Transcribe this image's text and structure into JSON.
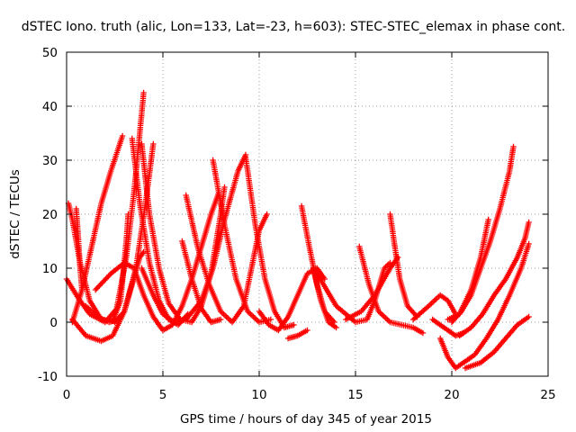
{
  "chart_data": {
    "type": "scatter",
    "title": "dSTEC Iono. truth (alic, Lon=133, Lat=-23, h=603): STEC-STEC_elemax in phase cont.",
    "xlabel": "GPS time / hours of day 345 of year 2015",
    "ylabel": "dSTEC  / TECUs",
    "xlim": [
      0,
      25
    ],
    "ylim": [
      -10,
      50
    ],
    "xticks": [
      0,
      5,
      10,
      15,
      20,
      25
    ],
    "yticks": [
      -10,
      0,
      10,
      20,
      30,
      40,
      50
    ],
    "grid": true,
    "marker": "plus",
    "color": "#ff0000",
    "arcs": [
      [
        [
          0.0,
          8.0
        ],
        [
          0.6,
          4.5
        ],
        [
          1.2,
          1.5
        ],
        [
          2.0,
          0.0
        ],
        [
          2.6,
          2.5
        ],
        [
          3.1,
          12.0
        ],
        [
          3.5,
          24.0
        ],
        [
          3.8,
          35.0
        ],
        [
          4.0,
          42.5
        ]
      ],
      [
        [
          0.1,
          22.0
        ],
        [
          0.3,
          19.0
        ],
        [
          0.7,
          11.0
        ],
        [
          1.2,
          4.0
        ],
        [
          1.8,
          0.5
        ],
        [
          2.4,
          0.2
        ],
        [
          2.8,
          4.0
        ],
        [
          3.1,
          15.0
        ],
        [
          3.2,
          20.0
        ]
      ],
      [
        [
          0.3,
          0.0
        ],
        [
          0.8,
          6.0
        ],
        [
          1.3,
          14.0
        ],
        [
          1.8,
          22.0
        ],
        [
          2.3,
          28.0
        ],
        [
          2.9,
          34.5
        ]
      ],
      [
        [
          0.3,
          0.5
        ],
        [
          1.0,
          -2.5
        ],
        [
          1.8,
          -3.5
        ],
        [
          2.4,
          -2.5
        ],
        [
          3.0,
          2.0
        ],
        [
          3.6,
          10.0
        ],
        [
          4.1,
          22.0
        ],
        [
          4.5,
          33.0
        ]
      ],
      [
        [
          0.5,
          21.0
        ],
        [
          0.6,
          16.0
        ],
        [
          0.7,
          10.0
        ],
        [
          0.8,
          6.0
        ]
      ],
      [
        [
          1.5,
          6.0
        ],
        [
          2.3,
          9.0
        ],
        [
          3.0,
          11.0
        ],
        [
          3.5,
          10.0
        ],
        [
          4.0,
          5.0
        ],
        [
          4.5,
          1.0
        ],
        [
          5.0,
          -1.5
        ],
        [
          5.5,
          -0.5
        ],
        [
          6.0,
          3.0
        ],
        [
          6.5,
          8.0
        ],
        [
          7.0,
          14.0
        ],
        [
          7.5,
          20.0
        ],
        [
          7.9,
          24.0
        ]
      ],
      [
        [
          2.5,
          0.0
        ],
        [
          3.0,
          2.0
        ],
        [
          3.4,
          7.0
        ],
        [
          3.8,
          12.0
        ],
        [
          4.0,
          13.0
        ]
      ],
      [
        [
          3.4,
          34.0
        ],
        [
          3.8,
          22.0
        ],
        [
          4.3,
          11.0
        ],
        [
          4.8,
          4.0
        ],
        [
          5.3,
          0.5
        ],
        [
          5.8,
          -0.5
        ],
        [
          6.3,
          1.5
        ]
      ],
      [
        [
          3.9,
          33.0
        ],
        [
          4.3,
          20.0
        ],
        [
          4.8,
          10.0
        ],
        [
          5.3,
          3.5
        ],
        [
          5.9,
          0.5
        ],
        [
          6.5,
          0.0
        ],
        [
          7.0,
          3.0
        ],
        [
          7.5,
          9.0
        ],
        [
          8.0,
          20.0
        ],
        [
          8.2,
          25.0
        ]
      ],
      [
        [
          3.9,
          10.0
        ],
        [
          4.5,
          5.0
        ],
        [
          5.0,
          1.5
        ],
        [
          5.6,
          0.0
        ],
        [
          6.2,
          0.5
        ],
        [
          7.0,
          4.0
        ],
        [
          7.6,
          10.0
        ],
        [
          8.2,
          19.0
        ],
        [
          8.9,
          28.0
        ],
        [
          9.3,
          31.0
        ]
      ],
      [
        [
          6.0,
          15.0
        ],
        [
          6.5,
          8.0
        ],
        [
          7.0,
          2.5
        ],
        [
          7.5,
          0.0
        ],
        [
          8.0,
          0.5
        ]
      ],
      [
        [
          6.2,
          23.5
        ],
        [
          6.8,
          14.0
        ],
        [
          7.4,
          7.0
        ],
        [
          8.0,
          2.0
        ],
        [
          8.6,
          0.0
        ],
        [
          9.2,
          3.0
        ],
        [
          9.6,
          10.0
        ],
        [
          10.0,
          17.0
        ],
        [
          10.4,
          20.0
        ]
      ],
      [
        [
          7.6,
          30.0
        ],
        [
          8.2,
          18.0
        ],
        [
          8.8,
          8.0
        ],
        [
          9.4,
          2.0
        ],
        [
          10.0,
          0.0
        ],
        [
          10.6,
          0.5
        ]
      ],
      [
        [
          9.3,
          30.5
        ],
        [
          9.8,
          18.0
        ],
        [
          10.3,
          8.0
        ],
        [
          10.8,
          2.0
        ],
        [
          11.3,
          -1.0
        ],
        [
          11.8,
          -0.5
        ]
      ],
      [
        [
          10.0,
          2.0
        ],
        [
          10.5,
          -0.5
        ],
        [
          11.0,
          -1.5
        ],
        [
          11.5,
          1.0
        ],
        [
          12.0,
          5.0
        ],
        [
          12.5,
          9.0
        ],
        [
          13.0,
          10.0
        ],
        [
          13.4,
          8.0
        ]
      ],
      [
        [
          12.2,
          21.5
        ],
        [
          12.6,
          14.0
        ],
        [
          13.0,
          7.0
        ],
        [
          13.4,
          2.0
        ],
        [
          13.9,
          0.0
        ]
      ],
      [
        [
          12.8,
          10.0
        ],
        [
          13.2,
          4.0
        ],
        [
          13.6,
          0.0
        ],
        [
          14.0,
          -1.0
        ]
      ],
      [
        [
          11.5,
          -3.0
        ],
        [
          12.0,
          -2.5
        ],
        [
          12.5,
          -1.5
        ]
      ],
      [
        [
          13.0,
          9.0
        ],
        [
          14.0,
          3.0
        ],
        [
          15.0,
          0.0
        ],
        [
          15.6,
          0.5
        ],
        [
          16.0,
          4.0
        ],
        [
          16.5,
          10.0
        ],
        [
          16.8,
          11.0
        ]
      ],
      [
        [
          15.2,
          14.0
        ],
        [
          15.7,
          7.0
        ],
        [
          16.2,
          2.0
        ],
        [
          16.8,
          0.0
        ],
        [
          17.4,
          -0.5
        ],
        [
          18.0,
          -1.0
        ],
        [
          18.5,
          -2.0
        ]
      ],
      [
        [
          16.8,
          20.0
        ],
        [
          17.0,
          15.0
        ],
        [
          17.3,
          8.0
        ],
        [
          17.7,
          3.0
        ],
        [
          18.2,
          1.0
        ]
      ],
      [
        [
          14.5,
          0.5
        ],
        [
          15.3,
          2.0
        ],
        [
          16.0,
          5.0
        ],
        [
          16.8,
          10.0
        ],
        [
          17.2,
          12.0
        ]
      ],
      [
        [
          18.0,
          0.5
        ],
        [
          18.8,
          3.0
        ],
        [
          19.4,
          5.0
        ],
        [
          19.8,
          4.0
        ],
        [
          20.2,
          1.5
        ]
      ],
      [
        [
          19.0,
          0.5
        ],
        [
          19.6,
          -1.0
        ],
        [
          20.2,
          -2.5
        ],
        [
          20.6,
          -2.0
        ]
      ],
      [
        [
          19.4,
          -3.0
        ],
        [
          19.8,
          -6.5
        ],
        [
          20.2,
          -8.5
        ],
        [
          20.6,
          -7.5
        ],
        [
          21.2,
          -6.0
        ],
        [
          21.8,
          -3.0
        ],
        [
          22.4,
          0.5
        ],
        [
          23.0,
          5.0
        ],
        [
          23.6,
          10.0
        ],
        [
          24.0,
          14.5
        ]
      ],
      [
        [
          20.0,
          0.0
        ],
        [
          20.5,
          2.0
        ],
        [
          21.0,
          5.0
        ],
        [
          21.5,
          10.0
        ],
        [
          22.0,
          15.0
        ],
        [
          22.5,
          21.0
        ],
        [
          23.0,
          28.0
        ],
        [
          23.2,
          32.5
        ]
      ],
      [
        [
          19.8,
          0.5
        ],
        [
          20.4,
          1.5
        ],
        [
          21.0,
          6.0
        ],
        [
          21.5,
          12.0
        ],
        [
          21.9,
          19.0
        ]
      ],
      [
        [
          20.4,
          -2.5
        ],
        [
          21.0,
          -1.0
        ],
        [
          21.6,
          1.5
        ],
        [
          22.2,
          5.0
        ],
        [
          22.8,
          8.0
        ],
        [
          23.4,
          12.0
        ],
        [
          23.8,
          15.5
        ],
        [
          24.0,
          18.5
        ]
      ],
      [
        [
          20.7,
          -8.5
        ],
        [
          21.5,
          -7.5
        ],
        [
          22.2,
          -5.5
        ],
        [
          22.8,
          -3.0
        ],
        [
          23.4,
          -0.5
        ],
        [
          24.0,
          1.0
        ]
      ],
      [
        [
          1.0,
          3.0
        ],
        [
          1.6,
          1.0
        ],
        [
          2.2,
          0.0
        ],
        [
          2.7,
          0.5
        ]
      ]
    ]
  }
}
